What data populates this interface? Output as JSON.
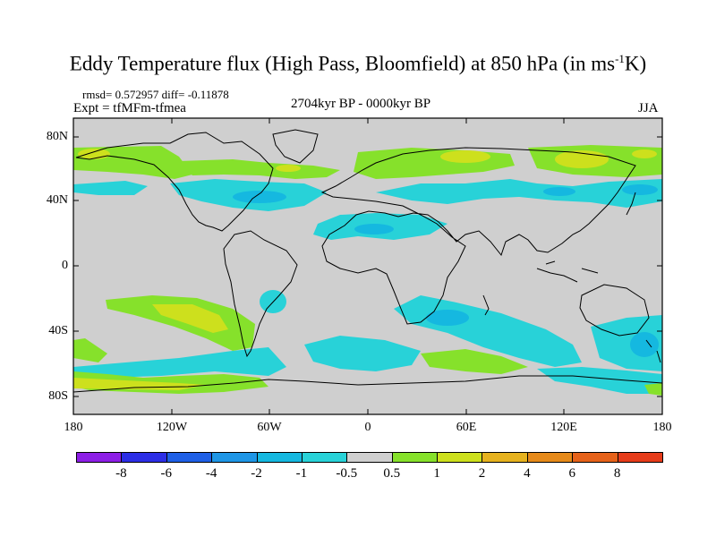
{
  "title": {
    "main": "Eddy Temperature flux (High Pass, Bloomfield) at 850 hPa (in ms",
    "sup": "-1",
    "unit_tail": "K)"
  },
  "stats": "rmsd= 0.572957 diff= -0.11878",
  "experiment": "Expt = tfMFm-tfmea",
  "period": "2704kyr BP - 0000kyr BP",
  "season": "JJA",
  "axes": {
    "lat_labels": [
      "80N",
      "40N",
      "0",
      "40S",
      "80S"
    ],
    "lon_labels": [
      "180",
      "120W",
      "60W",
      "0",
      "60E",
      "120E",
      "180"
    ]
  },
  "colorbar": {
    "levels": [
      "-8",
      "-6",
      "-4",
      "-2",
      "-1",
      "-0.5",
      "0.5",
      "1",
      "2",
      "4",
      "6",
      "8"
    ],
    "colors": [
      "#8d1ee6",
      "#2c2ee6",
      "#1e5fe6",
      "#1e96e6",
      "#15b8e0",
      "#28d2d8",
      "#cfcfcf",
      "#86e12b",
      "#cde01d",
      "#e6b21e",
      "#e68a1a",
      "#e6621a",
      "#e63c1a"
    ]
  },
  "palette": {
    "neutral": "#cfcfcf",
    "cyan": "#28d2d8",
    "blue": "#15b8e0",
    "green": "#86e12b",
    "yellow": "#cde01d",
    "coast": "#000000"
  }
}
